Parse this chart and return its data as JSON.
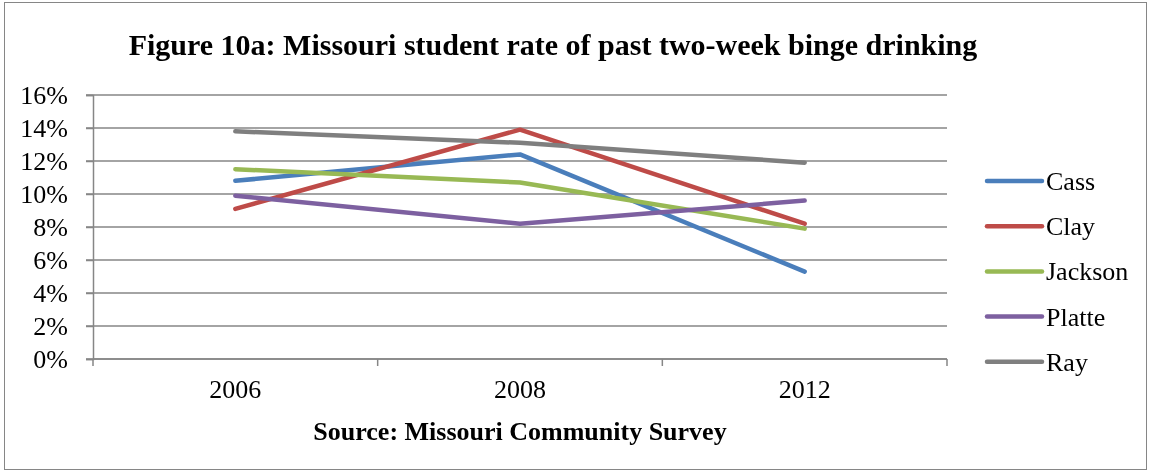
{
  "chart_data": {
    "type": "line",
    "title": "Figure 10a: Missouri student rate of past two-week binge drinking",
    "annotations": [
      "Source: Missouri Community Survey"
    ],
    "categories": [
      "2006",
      "2008",
      "2012"
    ],
    "series": [
      {
        "name": "Cass",
        "color": "#4a7ebb",
        "values": [
          10.8,
          12.4,
          5.3
        ]
      },
      {
        "name": "Clay",
        "color": "#be4b48",
        "values": [
          9.1,
          13.9,
          8.2
        ]
      },
      {
        "name": "Jackson",
        "color": "#98b954",
        "values": [
          11.5,
          10.7,
          7.9
        ]
      },
      {
        "name": "Platte",
        "color": "#7d60a0",
        "values": [
          9.9,
          8.2,
          9.6
        ]
      },
      {
        "name": "Ray",
        "color": "#7f7f7f",
        "values": [
          13.8,
          13.1,
          11.9
        ]
      }
    ],
    "ylim": [
      0,
      16
    ],
    "yticks": [
      {
        "value": 0,
        "label": "0%"
      },
      {
        "value": 2,
        "label": "2%"
      },
      {
        "value": 4,
        "label": "4%"
      },
      {
        "value": 6,
        "label": "6%"
      },
      {
        "value": 8,
        "label": "8%"
      },
      {
        "value": 10,
        "label": "10%"
      },
      {
        "value": 12,
        "label": "12%"
      },
      {
        "value": 14,
        "label": "14%"
      },
      {
        "value": 16,
        "label": "16%"
      }
    ],
    "grid": "y",
    "legend": "right",
    "marker": "none",
    "line_style": "solid"
  }
}
